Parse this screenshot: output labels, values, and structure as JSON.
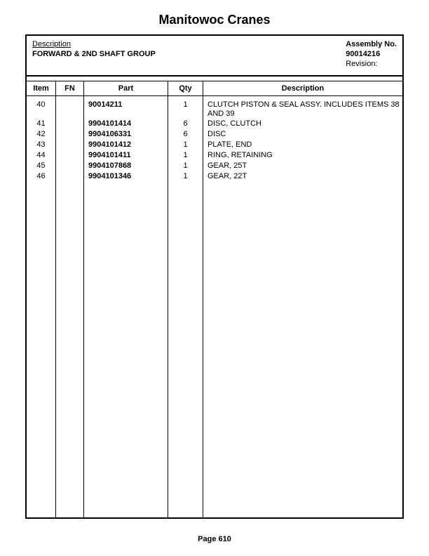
{
  "page": {
    "title": "Manitowoc Cranes",
    "footer": "Page 610"
  },
  "header": {
    "description_label": "Description",
    "description_value": "FORWARD & 2ND SHAFT GROUP",
    "assembly_label": "Assembly No.",
    "assembly_value": "90014216",
    "revision_label": "Revision:"
  },
  "columns": {
    "item": "Item",
    "fn": "FN",
    "part": "Part",
    "qty": "Qty",
    "description": "Description"
  },
  "rows": [
    {
      "item": "40",
      "fn": "",
      "part": "90014211",
      "qty": "1",
      "description": "CLUTCH PISTON & SEAL ASSY. INCLUDES ITEMS 38 AND 39",
      "tall": true
    },
    {
      "item": "41",
      "fn": "",
      "part": "9904101414",
      "qty": "6",
      "description": "DISC, CLUTCH"
    },
    {
      "item": "42",
      "fn": "",
      "part": "9904106331",
      "qty": "6",
      "description": "DISC"
    },
    {
      "item": "43",
      "fn": "",
      "part": "9904101412",
      "qty": "1",
      "description": "PLATE, END"
    },
    {
      "item": "44",
      "fn": "",
      "part": "9904101411",
      "qty": "1",
      "description": "RING, RETAINING"
    },
    {
      "item": "45",
      "fn": "",
      "part": "9904107868",
      "qty": "1",
      "description": "GEAR, 25T"
    },
    {
      "item": "46",
      "fn": "",
      "part": "9904101346",
      "qty": "1",
      "description": "GEAR, 22T"
    }
  ],
  "style": {
    "background_color": "#ffffff",
    "text_color": "#000000",
    "border_color": "#000000",
    "title_fontsize": 18,
    "body_fontsize": 11,
    "col_widths": {
      "item": 42,
      "fn": 40,
      "part": 120,
      "qty": 50
    }
  }
}
